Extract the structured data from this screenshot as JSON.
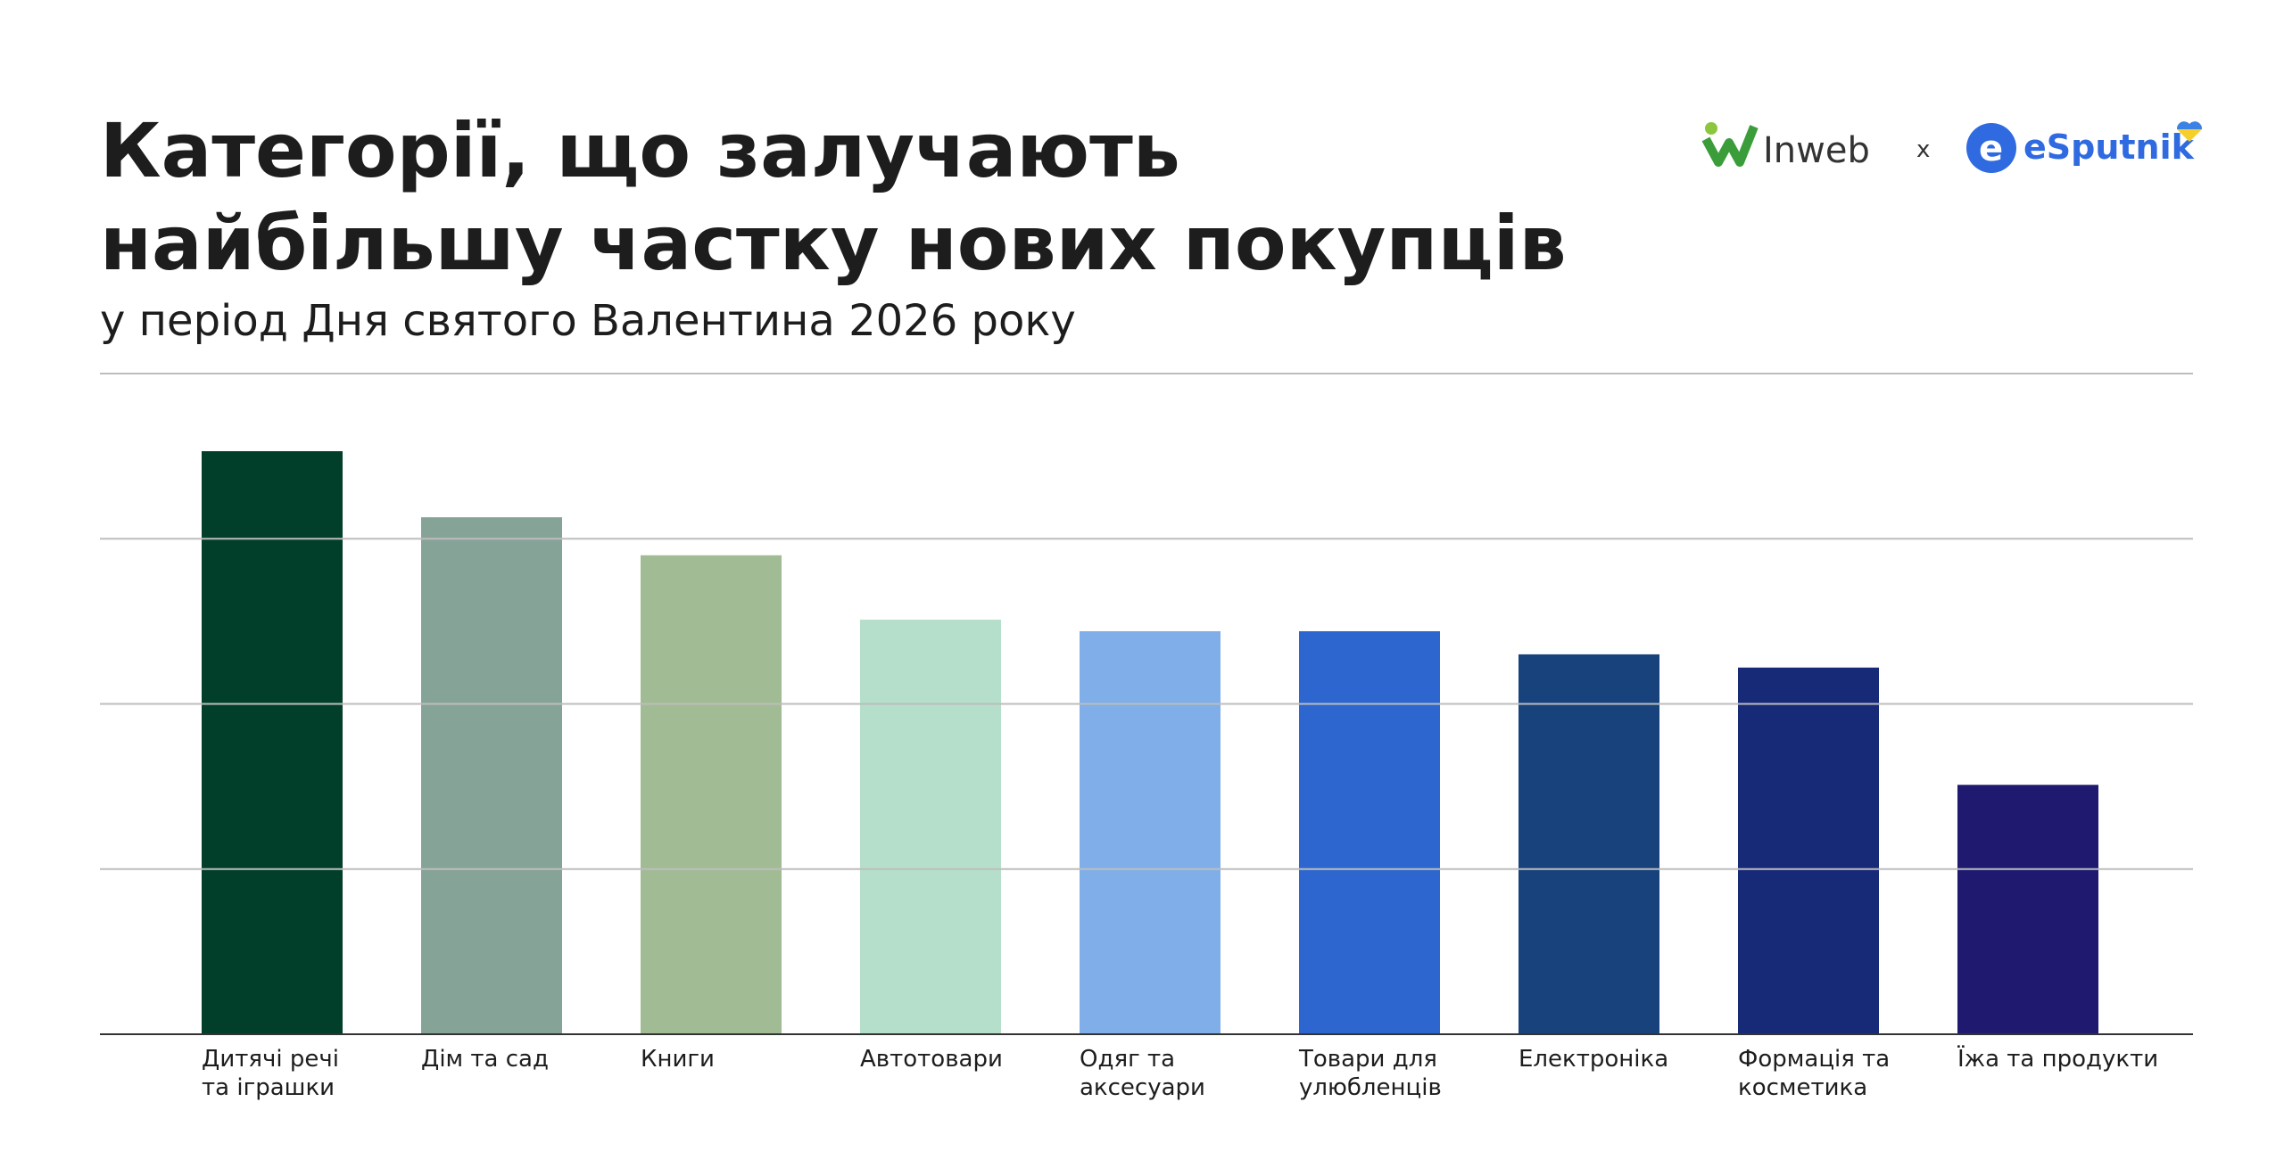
{
  "logos": {
    "left": "Inweb",
    "separator": "x",
    "right": "eSputnik"
  },
  "chart_data": {
    "type": "bar",
    "title": [
      "Категорії, що залучають",
      "найбільшу частку нових покупців"
    ],
    "subtitle": "у період Дня святого Валентина 2026 року",
    "categories": [
      [
        "Дитячі речі",
        "та іграшки"
      ],
      [
        "Дім та сад"
      ],
      [
        "Книги"
      ],
      [
        "Автотовари"
      ],
      [
        "Одяг та",
        "аксесуари"
      ],
      [
        "Товари для",
        "улюбленців"
      ],
      [
        "Електроніка"
      ],
      [
        "Формація та",
        "косметика"
      ],
      [
        "Їжа та продукти"
      ]
    ],
    "values": [
      3.53,
      3.13,
      2.9,
      2.51,
      2.44,
      2.44,
      2.3,
      2.22,
      1.51
    ],
    "colors": [
      "#023f2b",
      "#86a398",
      "#a1bc94",
      "#b5dfcb",
      "#80aee8",
      "#2c66ce",
      "#17427c",
      "#172a78",
      "#1f1a70"
    ],
    "ylim": [
      0,
      4
    ],
    "yticks": [
      0,
      1,
      2,
      3,
      4
    ],
    "grid": true
  }
}
